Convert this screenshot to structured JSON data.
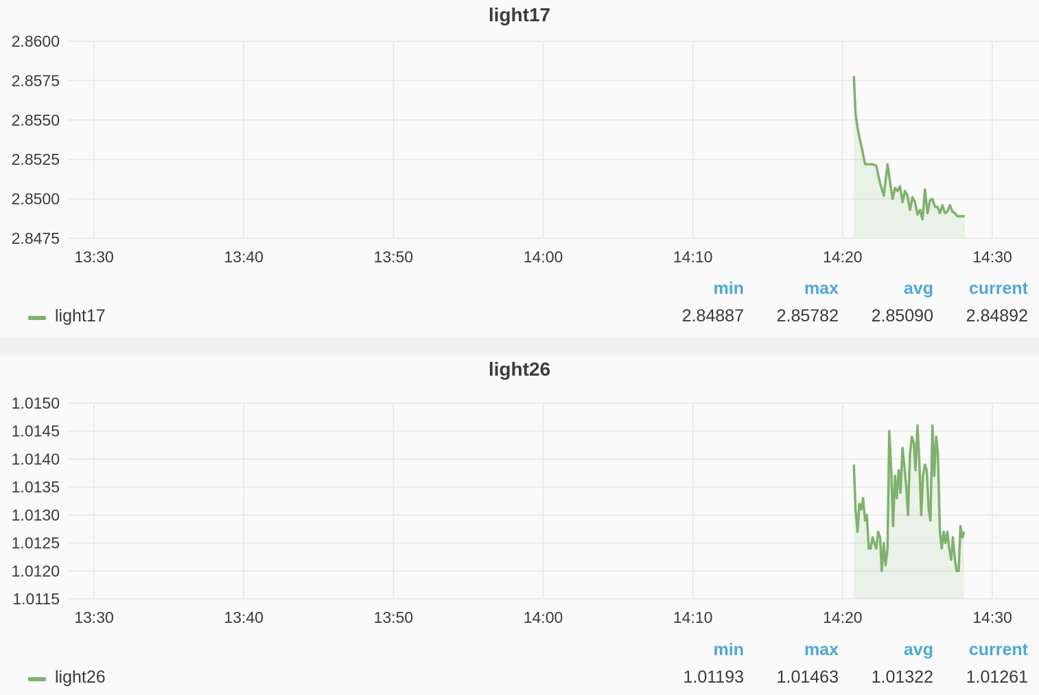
{
  "colors": {
    "series": "#7eb26d",
    "stat_header": "#4ea8d8",
    "grid": "#e6e6e6"
  },
  "stat_headers": [
    "min",
    "max",
    "avg",
    "current"
  ],
  "panels": [
    {
      "title": "light17",
      "legend": {
        "name": "light17",
        "min": "2.84887",
        "max": "2.85782",
        "avg": "2.85090",
        "current": "2.84892"
      }
    },
    {
      "title": "light26",
      "legend": {
        "name": "light26",
        "min": "1.01193",
        "max": "1.01463",
        "avg": "1.01322",
        "current": "1.01261"
      }
    }
  ],
  "chart_data": [
    {
      "type": "area",
      "title": "light17",
      "xlabel": "",
      "ylabel": "",
      "x_ticks": [
        "13:30",
        "13:40",
        "13:50",
        "14:00",
        "14:10",
        "14:20",
        "14:30"
      ],
      "y_ticks": [
        "2.8600",
        "2.8575",
        "2.8550",
        "2.8525",
        "2.8500",
        "2.8475"
      ],
      "xlim": [
        "13:30",
        "14:32"
      ],
      "ylim": [
        2.8475,
        2.86
      ],
      "grid": true,
      "series": [
        {
          "name": "light17",
          "x": [
            "14:20:45",
            "14:20:52",
            "14:21:00",
            "14:21:10",
            "14:21:20",
            "14:21:30",
            "14:21:45",
            "14:22:00",
            "14:22:15",
            "14:22:30",
            "14:22:45",
            "14:23:00",
            "14:23:10",
            "14:23:20",
            "14:23:30",
            "14:23:40",
            "14:23:50",
            "14:24:00",
            "14:24:10",
            "14:24:20",
            "14:24:30",
            "14:24:40",
            "14:24:50",
            "14:25:00",
            "14:25:10",
            "14:25:20",
            "14:25:30",
            "14:25:40",
            "14:25:50",
            "14:26:00",
            "14:26:10",
            "14:26:20",
            "14:26:30",
            "14:26:40",
            "14:26:50",
            "14:27:00",
            "14:27:10",
            "14:27:20",
            "14:27:30",
            "14:27:40",
            "14:27:50",
            "14:28:00",
            "14:28:10"
          ],
          "y": [
            2.8578,
            2.8554,
            2.8545,
            2.8537,
            2.853,
            2.8522,
            2.8522,
            2.8522,
            2.8521,
            2.851,
            2.8502,
            2.8522,
            2.8511,
            2.85,
            2.8507,
            2.8505,
            2.8508,
            2.8498,
            2.8505,
            2.8502,
            2.8493,
            2.8501,
            2.8498,
            2.849,
            2.8493,
            2.8487,
            2.8506,
            2.8491,
            2.8499,
            2.85,
            2.8495,
            2.8495,
            2.8491,
            2.8496,
            2.8491,
            2.8492,
            2.8496,
            2.8492,
            2.8491,
            2.8489,
            2.8489,
            2.8489,
            2.8489
          ]
        }
      ]
    },
    {
      "type": "area",
      "title": "light26",
      "xlabel": "",
      "ylabel": "",
      "x_ticks": [
        "13:30",
        "13:40",
        "13:50",
        "14:00",
        "14:10",
        "14:20",
        "14:30"
      ],
      "y_ticks": [
        "1.0150",
        "1.0145",
        "1.0140",
        "1.0135",
        "1.0130",
        "1.0125",
        "1.0120",
        "1.0115"
      ],
      "xlim": [
        "13:30",
        "14:32"
      ],
      "ylim": [
        1.0115,
        1.015
      ],
      "grid": true,
      "series": [
        {
          "name": "light26",
          "x": [
            "14:20:45",
            "14:20:52",
            "14:21:00",
            "14:21:07",
            "14:21:15",
            "14:21:22",
            "14:21:30",
            "14:21:37",
            "14:21:45",
            "14:21:52",
            "14:22:00",
            "14:22:07",
            "14:22:15",
            "14:22:22",
            "14:22:30",
            "14:22:37",
            "14:22:45",
            "14:22:52",
            "14:23:00",
            "14:23:07",
            "14:23:15",
            "14:23:22",
            "14:23:30",
            "14:23:37",
            "14:23:45",
            "14:23:52",
            "14:24:00",
            "14:24:07",
            "14:24:15",
            "14:24:22",
            "14:24:30",
            "14:24:37",
            "14:24:45",
            "14:24:52",
            "14:25:00",
            "14:25:07",
            "14:25:15",
            "14:25:22",
            "14:25:30",
            "14:25:37",
            "14:25:45",
            "14:25:52",
            "14:26:00",
            "14:26:07",
            "14:26:15",
            "14:26:22",
            "14:26:30",
            "14:26:37",
            "14:26:45",
            "14:26:52",
            "14:27:00",
            "14:27:07",
            "14:27:15",
            "14:27:22",
            "14:27:30",
            "14:27:37",
            "14:27:45",
            "14:27:52",
            "14:28:00",
            "14:28:07"
          ],
          "y": [
            1.0139,
            1.0131,
            1.0127,
            1.0132,
            1.0131,
            1.0133,
            1.0129,
            1.013,
            1.0124,
            1.0124,
            1.0126,
            1.0125,
            1.0124,
            1.0127,
            1.0126,
            1.012,
            1.0125,
            1.0121,
            1.0124,
            1.0145,
            1.0138,
            1.0128,
            1.0137,
            1.0133,
            1.0138,
            1.0134,
            1.0142,
            1.0139,
            1.0135,
            1.013,
            1.0141,
            1.0144,
            1.0143,
            1.0138,
            1.0146,
            1.014,
            1.013,
            1.0137,
            1.0139,
            1.0138,
            1.0131,
            1.0129,
            1.0146,
            1.0137,
            1.0144,
            1.0141,
            1.0127,
            1.0124,
            1.0127,
            1.0125,
            1.0127,
            1.0124,
            1.0122,
            1.0126,
            1.0122,
            1.012,
            1.012,
            1.0128,
            1.0126,
            1.0127
          ]
        }
      ]
    }
  ]
}
